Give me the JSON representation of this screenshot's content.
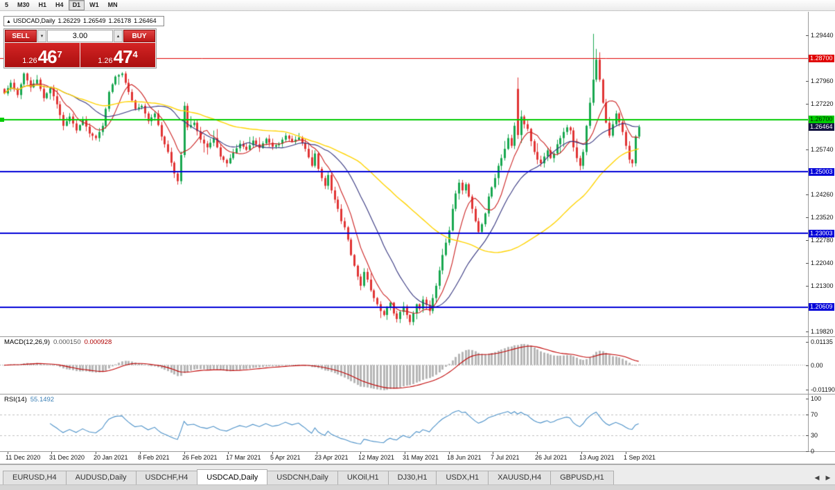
{
  "toolbar": {
    "timeframes": [
      {
        "label": "5",
        "active": false
      },
      {
        "label": "M30",
        "active": false
      },
      {
        "label": "H1",
        "active": false
      },
      {
        "label": "H4",
        "active": false
      },
      {
        "label": "D1",
        "active": true
      },
      {
        "label": "W1",
        "active": false
      },
      {
        "label": "MN",
        "active": false
      }
    ]
  },
  "chart": {
    "window_marker": "▲",
    "title": "USDCAD,Daily",
    "ohlc": {
      "open": "1.26229",
      "high": "1.26549",
      "low": "1.26178",
      "close": "1.26464"
    }
  },
  "trade_panel": {
    "sell_label": "SELL",
    "buy_label": "BUY",
    "volume": "3.00",
    "dropdown_icon": "▾",
    "spinner_icon": "▴",
    "sell_price": {
      "prefix": "1.26",
      "big": "46",
      "sup": "7"
    },
    "buy_price": {
      "prefix": "1.26",
      "big": "47",
      "sup": "4"
    }
  },
  "levels": [
    {
      "label": "1.28700",
      "price": 1.287,
      "color": "#e00000",
      "width": 1,
      "label_bg": "#e00000",
      "label_fg": "#ffffff"
    },
    {
      "label": "1.26700",
      "price": 1.267,
      "color": "#00cc00",
      "width": 2,
      "label_bg": "#00cc00",
      "label_fg": "#002b00"
    },
    {
      "label": "1.25003",
      "price": 1.25003,
      "color": "#0000d8",
      "width": 2,
      "label_bg": "#0000d8",
      "label_fg": "#ffffff"
    },
    {
      "label": "1.23003",
      "price": 1.23003,
      "color": "#0000d8",
      "width": 2,
      "label_bg": "#0000d8",
      "label_fg": "#ffffff"
    },
    {
      "label": "1.20609",
      "price": 1.20609,
      "color": "#0000d8",
      "width": 2,
      "label_bg": "#0000d8",
      "label_fg": "#ffffff"
    }
  ],
  "current_price": {
    "label": "1.26464",
    "price": 1.26464,
    "label_bg": "#121240",
    "label_fg": "#ffffff"
  },
  "price_axis": {
    "plain_labels": [
      "1.29440",
      "1.27960",
      "1.27220",
      "1.25740",
      "1.24260",
      "1.23520",
      "1.22780",
      "1.22040",
      "1.21300",
      "1.19820"
    ]
  },
  "time_axis": {
    "dates": [
      "11 Dec 2020",
      "31 Dec 2020",
      "20 Jan 2021",
      "8 Feb 2021",
      "26 Feb 2021",
      "17 Mar 2021",
      "5 Apr 2021",
      "23 Apr 2021",
      "12 May 2021",
      "31 May 2021",
      "18 Jun 2021",
      "7 Jul 2021",
      "26 Jul 2021",
      "13 Aug 2021",
      "1 Sep 2021"
    ]
  },
  "indicators": {
    "macd": {
      "name": "MACD(12,26,9)",
      "value_main": "0.000150",
      "value_signal": "0.000928",
      "axis": [
        {
          "text": "0.01135",
          "value": 0.01135
        },
        {
          "text": "0.00",
          "value": 0
        },
        {
          "text": "-0.01190",
          "value": -0.0119
        }
      ],
      "histogram_color": "#b6b6b6",
      "signal_color": "#c00000"
    },
    "rsi": {
      "name": "RSI(14)",
      "value": "55.1492",
      "axis": [
        {
          "text": "100",
          "value": 100
        },
        {
          "text": "70",
          "value": 70
        },
        {
          "text": "30",
          "value": 30
        },
        {
          "text": "0",
          "value": 0
        }
      ],
      "line_color": "#4a90c8",
      "level_lines": [
        70,
        30
      ]
    }
  },
  "tabs": {
    "items": [
      {
        "label": "EURUSD,H4",
        "active": false
      },
      {
        "label": "AUDUSD,Daily",
        "active": false
      },
      {
        "label": "USDCHF,H4",
        "active": false
      },
      {
        "label": "USDCAD,Daily",
        "active": true
      },
      {
        "label": "USDCNH,Daily",
        "active": false
      },
      {
        "label": "UKOil,H1",
        "active": false
      },
      {
        "label": "DJ30,H1",
        "active": false
      },
      {
        "label": "USDX,H1",
        "active": false
      },
      {
        "label": "XAUUSD,H4",
        "active": false
      },
      {
        "label": "GBPUSD,H1",
        "active": false
      }
    ],
    "left_arrow": "◀",
    "right_arrow": "▶"
  },
  "chart_data": {
    "type": "candlestick",
    "symbol": "USDCAD",
    "timeframe": "Daily",
    "bars": 195,
    "ylim": [
      1.1982,
      1.3014
    ],
    "up_color": "#18a74f",
    "down_color": "#e13434",
    "ma_lines": [
      {
        "period": 8,
        "color": "#cc2020"
      },
      {
        "period": 21,
        "color": "#35357f"
      },
      {
        "period": 55,
        "color": "#ffd400"
      }
    ],
    "anchors": [
      [
        0,
        1.2755
      ],
      [
        2,
        1.279
      ],
      [
        4,
        1.275
      ],
      [
        6,
        1.282
      ],
      [
        8,
        1.2775
      ],
      [
        10,
        1.28
      ],
      [
        12,
        1.274
      ],
      [
        14,
        1.2772
      ],
      [
        16,
        1.272
      ],
      [
        18,
        1.265
      ],
      [
        20,
        1.268
      ],
      [
        22,
        1.2635
      ],
      [
        24,
        1.267
      ],
      [
        26,
        1.2625
      ],
      [
        28,
        1.261
      ],
      [
        30,
        1.265
      ],
      [
        32,
        1.276
      ],
      [
        34,
        1.281
      ],
      [
        36,
        1.282
      ],
      [
        38,
        1.276
      ],
      [
        40,
        1.2705
      ],
      [
        42,
        1.2715
      ],
      [
        44,
        1.2665
      ],
      [
        46,
        1.269
      ],
      [
        48,
        1.2615
      ],
      [
        50,
        1.2565
      ],
      [
        52,
        1.2495
      ],
      [
        53,
        1.247
      ],
      [
        54,
        1.2555
      ],
      [
        55,
        1.2715
      ],
      [
        56,
        1.2645
      ],
      [
        58,
        1.266
      ],
      [
        60,
        1.2605
      ],
      [
        62,
        1.258
      ],
      [
        64,
        1.261
      ],
      [
        66,
        1.255
      ],
      [
        68,
        1.2528
      ],
      [
        70,
        1.2562
      ],
      [
        72,
        1.2592
      ],
      [
        74,
        1.2572
      ],
      [
        76,
        1.2602
      ],
      [
        78,
        1.2578
      ],
      [
        80,
        1.2608
      ],
      [
        82,
        1.2582
      ],
      [
        84,
        1.2592
      ],
      [
        86,
        1.2618
      ],
      [
        88,
        1.2598
      ],
      [
        90,
        1.2612
      ],
      [
        92,
        1.2575
      ],
      [
        94,
        1.252
      ],
      [
        95,
        1.256
      ],
      [
        96,
        1.251
      ],
      [
        97,
        1.248
      ],
      [
        98,
        1.2455
      ],
      [
        99,
        1.249
      ],
      [
        100,
        1.244
      ],
      [
        101,
        1.241
      ],
      [
        102,
        1.238
      ],
      [
        103,
        1.234
      ],
      [
        104,
        1.232
      ],
      [
        105,
        1.228
      ],
      [
        106,
        1.223
      ],
      [
        107,
        1.2195
      ],
      [
        108,
        1.216
      ],
      [
        109,
        1.213
      ],
      [
        110,
        1.2175
      ],
      [
        111,
        1.215
      ],
      [
        112,
        1.2115
      ],
      [
        113,
        1.209
      ],
      [
        114,
        1.207
      ],
      [
        115,
        1.2048
      ],
      [
        116,
        1.2035
      ],
      [
        117,
        1.206
      ],
      [
        118,
        1.2075
      ],
      [
        119,
        1.204
      ],
      [
        120,
        1.2022
      ],
      [
        121,
        1.2045
      ],
      [
        122,
        1.2063
      ],
      [
        123,
        1.2035
      ],
      [
        124,
        1.2012
      ],
      [
        125,
        1.204
      ],
      [
        126,
        1.207
      ],
      [
        127,
        1.2055
      ],
      [
        128,
        1.2085
      ],
      [
        129,
        1.2068
      ],
      [
        130,
        1.2048
      ],
      [
        131,
        1.209
      ],
      [
        132,
        1.213
      ],
      [
        133,
        1.218
      ],
      [
        134,
        1.223
      ],
      [
        135,
        1.227
      ],
      [
        136,
        1.231
      ],
      [
        137,
        1.238
      ],
      [
        138,
        1.243
      ],
      [
        139,
        1.2465
      ],
      [
        140,
        1.244
      ],
      [
        141,
        1.246
      ],
      [
        142,
        1.242
      ],
      [
        143,
        1.238
      ],
      [
        144,
        1.234
      ],
      [
        145,
        1.2305
      ],
      [
        146,
        1.233
      ],
      [
        147,
        1.2365
      ],
      [
        148,
        1.242
      ],
      [
        149,
        1.245
      ],
      [
        150,
        1.248
      ],
      [
        151,
        1.252
      ],
      [
        152,
        1.2545
      ],
      [
        153,
        1.2575
      ],
      [
        154,
        1.261
      ],
      [
        155,
        1.2585
      ],
      [
        156,
        1.265
      ],
      [
        157,
        1.262
      ],
      [
        158,
        1.268
      ],
      [
        159,
        1.2655
      ],
      [
        160,
        1.264
      ],
      [
        161,
        1.26
      ],
      [
        162,
        1.2565
      ],
      [
        163,
        1.254
      ],
      [
        164,
        1.2528
      ],
      [
        165,
        1.255
      ],
      [
        166,
        1.257
      ],
      [
        167,
        1.2545
      ],
      [
        168,
        1.256
      ],
      [
        169,
        1.259
      ],
      [
        170,
        1.261
      ],
      [
        171,
        1.263
      ],
      [
        172,
        1.2645
      ],
      [
        173,
        1.2635
      ],
      [
        174,
        1.258
      ],
      [
        175,
        1.2545
      ],
      [
        176,
        1.252
      ],
      [
        177,
        1.2565
      ],
      [
        178,
        1.265
      ],
      [
        179,
        1.2725
      ],
      [
        180,
        1.28
      ],
      [
        181,
        1.2865
      ],
      [
        182,
        1.28
      ],
      [
        183,
        1.2725
      ],
      [
        184,
        1.266
      ],
      [
        185,
        1.2618
      ],
      [
        186,
        1.2655
      ],
      [
        187,
        1.269
      ],
      [
        188,
        1.2662
      ],
      [
        189,
        1.263
      ],
      [
        190,
        1.2585
      ],
      [
        191,
        1.254
      ],
      [
        192,
        1.2528
      ],
      [
        193,
        1.2615
      ],
      [
        194,
        1.26464
      ]
    ],
    "spikes": [
      [
        124,
        "l",
        1.2007
      ],
      [
        157,
        "h",
        1.2807
      ],
      [
        180,
        "h",
        1.2949
      ],
      [
        181,
        "h",
        1.29
      ]
    ],
    "open_overrides": [
      [
        157,
        1.277
      ]
    ]
  }
}
